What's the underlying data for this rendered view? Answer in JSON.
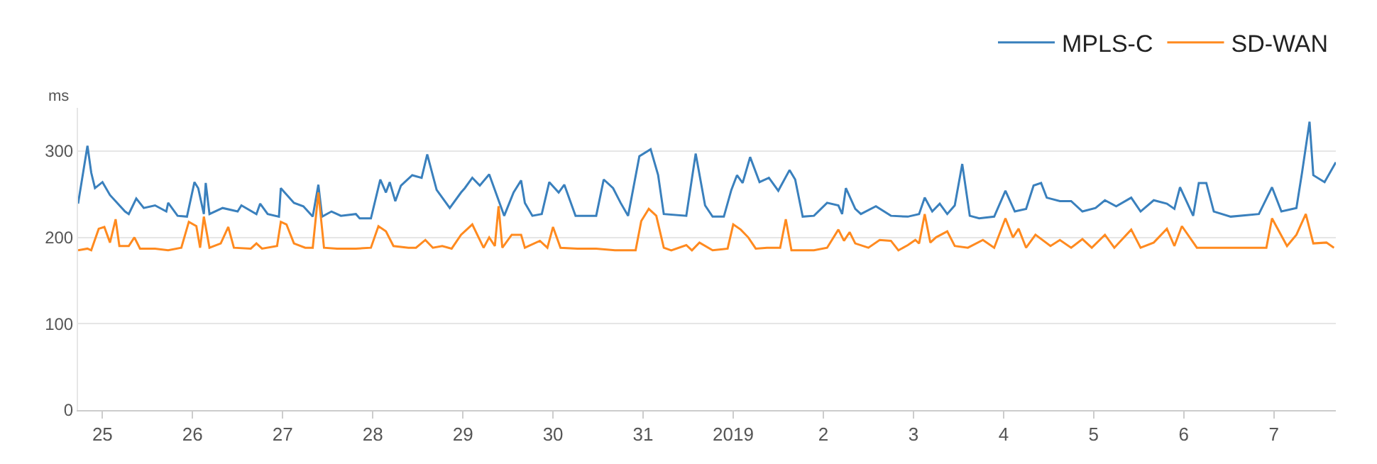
{
  "chart_data": {
    "type": "line",
    "ylabel": "ms",
    "xlim": [
      "2018-12-24T17:30",
      "2019-01-07T16:30"
    ],
    "ylim": [
      0,
      350
    ],
    "yticks": [
      0,
      100,
      200,
      300
    ],
    "xticks": [
      {
        "value": "2018-12-25",
        "label": "25"
      },
      {
        "value": "2018-12-26",
        "label": "26"
      },
      {
        "value": "2018-12-27",
        "label": "27"
      },
      {
        "value": "2018-12-28",
        "label": "28"
      },
      {
        "value": "2018-12-29",
        "label": "29"
      },
      {
        "value": "2018-12-30",
        "label": "30"
      },
      {
        "value": "2018-12-31",
        "label": "31"
      },
      {
        "value": "2019-01-01",
        "label": "2019"
      },
      {
        "value": "2019-01-02",
        "label": "2"
      },
      {
        "value": "2019-01-03",
        "label": "3"
      },
      {
        "value": "2019-01-04",
        "label": "4"
      },
      {
        "value": "2019-01-05",
        "label": "5"
      },
      {
        "value": "2019-01-06",
        "label": "6"
      },
      {
        "value": "2019-01-07",
        "label": "7"
      }
    ],
    "grid": "y",
    "legend": "top right",
    "marker": "none",
    "line_style": "solid",
    "series": [
      {
        "name": "MPLS-C",
        "color": "#3a80bd",
        "x": [
          "2018-12-24T17:30",
          "2018-12-24T20:00",
          "2018-12-24T21:00",
          "2018-12-24T22:00",
          "2018-12-25T00:00",
          "2018-12-25T02:00",
          "2018-12-25T06:00",
          "2018-12-25T07:00",
          "2018-12-25T09:00",
          "2018-12-25T11:00",
          "2018-12-25T14:00",
          "2018-12-25T17:00",
          "2018-12-25T17:30",
          "2018-12-25T20:00",
          "2018-12-25T22:30",
          "2018-12-26T00:30",
          "2018-12-26T01:30",
          "2018-12-26T03:00",
          "2018-12-26T03:30",
          "2018-12-26T04:30",
          "2018-12-26T08:00",
          "2018-12-26T12:00",
          "2018-12-26T13:00",
          "2018-12-26T17:00",
          "2018-12-26T18:00",
          "2018-12-26T20:00",
          "2018-12-26T23:00",
          "2018-12-26T23:30",
          "2018-12-27T03:00",
          "2018-12-27T05:30",
          "2018-12-27T08:00",
          "2018-12-27T09:30",
          "2018-12-27T10:30",
          "2018-12-27T13:00",
          "2018-12-27T15:30",
          "2018-12-27T19:30",
          "2018-12-27T20:30",
          "2018-12-27T23:30",
          "2018-12-28T02:00",
          "2018-12-28T03:30",
          "2018-12-28T04:30",
          "2018-12-28T06:00",
          "2018-12-28T07:30",
          "2018-12-28T10:30",
          "2018-12-28T13:00",
          "2018-12-28T14:30",
          "2018-12-28T17:00",
          "2018-12-28T20:30",
          "2018-12-28T23:30",
          "2018-12-29T00:30",
          "2018-12-29T02:30",
          "2018-12-29T04:30",
          "2018-12-29T07:00",
          "2018-12-29T11:00",
          "2018-12-29T13:30",
          "2018-12-29T15:30",
          "2018-12-29T16:30",
          "2018-12-29T18:30",
          "2018-12-29T21:00",
          "2018-12-29T23:00",
          "2018-12-30T01:30",
          "2018-12-30T03:00",
          "2018-12-30T06:00",
          "2018-12-30T08:30",
          "2018-12-30T11:30",
          "2018-12-30T13:30",
          "2018-12-30T16:00",
          "2018-12-30T18:00",
          "2018-12-30T20:00",
          "2018-12-30T23:00",
          "2018-12-31T02:00",
          "2018-12-31T04:00",
          "2018-12-31T05:30",
          "2018-12-31T11:30",
          "2018-12-31T14:00",
          "2018-12-31T16:30",
          "2018-12-31T18:30",
          "2018-12-31T21:30",
          "2018-12-31T23:30",
          "2019-01-01T01:00",
          "2019-01-01T02:30",
          "2019-01-01T04:30",
          "2019-01-01T07:00",
          "2019-01-01T09:30",
          "2019-01-01T12:00",
          "2019-01-01T15:00",
          "2019-01-01T16:30",
          "2019-01-01T18:30",
          "2019-01-01T21:30",
          "2019-01-02T01:00",
          "2019-01-02T04:00",
          "2019-01-02T05:00",
          "2019-01-02T06:00",
          "2019-01-02T08:30",
          "2019-01-02T10:00",
          "2019-01-02T14:00",
          "2019-01-02T18:00",
          "2019-01-02T22:30",
          "2019-01-03T01:30",
          "2019-01-03T03:00",
          "2019-01-03T05:00",
          "2019-01-03T07:00",
          "2019-01-03T09:00",
          "2019-01-03T11:00",
          "2019-01-03T13:00",
          "2019-01-03T15:00",
          "2019-01-03T17:30",
          "2019-01-03T21:30",
          "2019-01-04T00:30",
          "2019-01-04T03:00",
          "2019-01-04T06:00",
          "2019-01-04T08:00",
          "2019-01-04T10:00",
          "2019-01-04T11:30",
          "2019-01-04T15:00",
          "2019-01-04T18:00",
          "2019-01-04T21:00",
          "2019-01-05T00:30",
          "2019-01-05T03:00",
          "2019-01-05T06:00",
          "2019-01-05T10:00",
          "2019-01-05T12:30",
          "2019-01-05T16:00",
          "2019-01-05T19:30",
          "2019-01-05T21:30",
          "2019-01-05T23:00",
          "2019-01-06T02:30",
          "2019-01-06T04:00",
          "2019-01-06T06:00",
          "2019-01-06T08:00",
          "2019-01-06T12:30",
          "2019-01-06T20:00",
          "2019-01-06T23:30",
          "2019-01-07T02:00",
          "2019-01-07T06:00",
          "2019-01-07T07:30",
          "2019-01-07T09:30",
          "2019-01-07T10:30",
          "2019-01-07T13:30",
          "2019-01-07T16:30"
        ],
        "values": [
          239,
          306,
          275,
          257,
          264,
          249,
          230,
          227,
          245,
          234,
          237,
          230,
          240,
          225,
          224,
          264,
          257,
          227,
          263,
          227,
          234,
          230,
          237,
          227,
          239,
          227,
          224,
          257,
          240,
          236,
          224,
          261,
          224,
          230,
          225,
          227,
          222,
          222,
          267,
          252,
          264,
          242,
          260,
          272,
          269,
          296,
          255,
          234,
          252,
          257,
          269,
          260,
          273,
          225,
          252,
          266,
          240,
          225,
          227,
          264,
          252,
          261,
          225,
          225,
          225,
          267,
          257,
          240,
          225,
          294,
          302,
          272,
          227,
          225,
          297,
          237,
          224,
          224,
          255,
          272,
          263,
          293,
          264,
          269,
          254,
          278,
          267,
          224,
          225,
          240,
          237,
          227,
          257,
          233,
          227,
          236,
          225,
          224,
          227,
          246,
          230,
          239,
          227,
          237,
          285,
          225,
          222,
          224,
          254,
          230,
          233,
          260,
          263,
          246,
          242,
          242,
          230,
          234,
          243,
          236,
          246,
          230,
          243,
          239,
          233,
          258,
          225,
          263,
          263,
          230,
          224,
          227,
          258,
          230,
          234,
          275,
          334,
          272,
          264,
          287
        ]
      },
      {
        "name": "SD-WAN",
        "color": "#ff8a1f",
        "x": [
          "2018-12-24T17:30",
          "2018-12-24T20:00",
          "2018-12-24T21:00",
          "2018-12-24T23:00",
          "2018-12-25T00:30",
          "2018-12-25T02:00",
          "2018-12-25T03:30",
          "2018-12-25T04:30",
          "2018-12-25T07:00",
          "2018-12-25T08:30",
          "2018-12-25T10:00",
          "2018-12-25T14:00",
          "2018-12-25T17:30",
          "2018-12-25T21:00",
          "2018-12-25T23:00",
          "2018-12-26T01:00",
          "2018-12-26T02:00",
          "2018-12-26T03:00",
          "2018-12-26T04:30",
          "2018-12-26T07:30",
          "2018-12-26T09:30",
          "2018-12-26T11:00",
          "2018-12-26T15:30",
          "2018-12-26T17:00",
          "2018-12-26T18:30",
          "2018-12-26T22:30",
          "2018-12-26T23:30",
          "2018-12-27T01:00",
          "2018-12-27T03:00",
          "2018-12-27T06:00",
          "2018-12-27T08:00",
          "2018-12-27T09:30",
          "2018-12-27T11:00",
          "2018-12-27T14:30",
          "2018-12-27T19:30",
          "2018-12-27T23:30",
          "2018-12-28T01:30",
          "2018-12-28T03:30",
          "2018-12-28T05:30",
          "2018-12-28T09:30",
          "2018-12-28T11:30",
          "2018-12-28T14:00",
          "2018-12-28T16:00",
          "2018-12-28T18:30",
          "2018-12-28T21:00",
          "2018-12-28T23:30",
          "2018-12-29T02:30",
          "2018-12-29T05:30",
          "2018-12-29T07:00",
          "2018-12-29T08:30",
          "2018-12-29T09:30",
          "2018-12-29T10:30",
          "2018-12-29T13:00",
          "2018-12-29T15:30",
          "2018-12-29T16:30",
          "2018-12-29T20:30",
          "2018-12-29T22:30",
          "2018-12-30T00:00",
          "2018-12-30T02:00",
          "2018-12-30T06:30",
          "2018-12-30T11:30",
          "2018-12-30T16:30",
          "2018-12-30T22:00",
          "2018-12-30T23:30",
          "2018-12-31T01:30",
          "2018-12-31T03:30",
          "2018-12-31T05:30",
          "2018-12-31T07:30",
          "2018-12-31T11:30",
          "2018-12-31T13:00",
          "2018-12-31T15:00",
          "2018-12-31T18:30",
          "2018-12-31T22:30",
          "2019-01-01T00:00",
          "2019-01-01T02:00",
          "2019-01-01T04:00",
          "2019-01-01T06:00",
          "2019-01-01T09:00",
          "2019-01-01T12:30",
          "2019-01-01T14:00",
          "2019-01-01T15:30",
          "2019-01-01T21:30",
          "2019-01-02T01:00",
          "2019-01-02T04:00",
          "2019-01-02T05:30",
          "2019-01-02T07:00",
          "2019-01-02T08:30",
          "2019-01-02T12:00",
          "2019-01-02T15:00",
          "2019-01-02T18:00",
          "2019-01-02T20:00",
          "2019-01-02T22:30",
          "2019-01-03T00:30",
          "2019-01-03T01:30",
          "2019-01-03T03:00",
          "2019-01-03T04:30",
          "2019-01-03T06:00",
          "2019-01-03T09:00",
          "2019-01-03T11:00",
          "2019-01-03T14:30",
          "2019-01-03T18:30",
          "2019-01-03T21:30",
          "2019-01-04T00:30",
          "2019-01-04T02:30",
          "2019-01-04T04:00",
          "2019-01-04T06:00",
          "2019-01-04T08:30",
          "2019-01-04T12:30",
          "2019-01-04T15:00",
          "2019-01-04T18:00",
          "2019-01-04T21:00",
          "2019-01-04T23:30",
          "2019-01-05T03:00",
          "2019-01-05T05:30",
          "2019-01-05T10:00",
          "2019-01-05T12:30",
          "2019-01-05T16:00",
          "2019-01-05T19:30",
          "2019-01-05T21:30",
          "2019-01-05T23:30",
          "2019-01-06T03:30",
          "2019-01-06T08:30",
          "2019-01-06T13:30",
          "2019-01-06T22:00",
          "2019-01-06T23:30",
          "2019-01-07T03:30",
          "2019-01-07T06:00",
          "2019-01-07T08:30",
          "2019-01-07T10:30",
          "2019-01-07T14:00",
          "2019-01-07T16:00"
        ],
        "values": [
          185,
          187,
          185,
          210,
          212,
          194,
          221,
          190,
          190,
          200,
          187,
          187,
          185,
          188,
          218,
          213,
          188,
          224,
          188,
          193,
          212,
          188,
          187,
          193,
          187,
          190,
          218,
          215,
          193,
          188,
          188,
          252,
          188,
          187,
          187,
          188,
          213,
          207,
          190,
          188,
          188,
          197,
          188,
          190,
          187,
          203,
          215,
          188,
          200,
          190,
          236,
          188,
          203,
          203,
          188,
          196,
          188,
          212,
          188,
          187,
          187,
          185,
          185,
          219,
          233,
          225,
          188,
          185,
          191,
          185,
          194,
          185,
          187,
          215,
          209,
          200,
          187,
          188,
          188,
          221,
          185,
          185,
          188,
          209,
          196,
          206,
          193,
          188,
          197,
          196,
          185,
          191,
          197,
          193,
          227,
          194,
          200,
          207,
          190,
          188,
          197,
          188,
          222,
          200,
          210,
          188,
          203,
          190,
          197,
          188,
          198,
          188,
          203,
          188,
          209,
          188,
          194,
          210,
          190,
          213,
          188,
          188,
          188,
          188,
          222,
          190,
          203,
          227,
          193,
          194,
          188
        ]
      }
    ]
  }
}
